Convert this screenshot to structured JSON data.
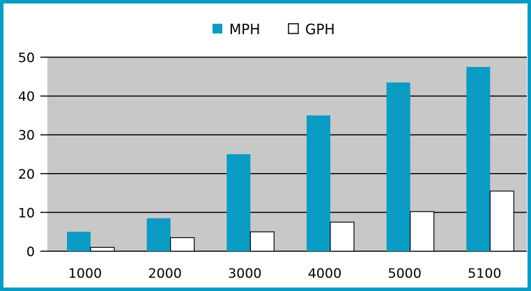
{
  "chart_data": {
    "type": "bar",
    "categories": [
      "1000",
      "2000",
      "3000",
      "4000",
      "5000",
      "5100"
    ],
    "series": [
      {
        "name": "MPH",
        "values": [
          5,
          8.5,
          25,
          35,
          43.5,
          47.5
        ],
        "color": "#0a9cc4"
      },
      {
        "name": "GPH",
        "values": [
          1,
          3.5,
          5,
          7.5,
          10.2,
          15.5
        ],
        "color": "#ffffff"
      }
    ],
    "title": "",
    "xlabel": "",
    "ylabel": "",
    "ylim": [
      0,
      50
    ],
    "yticks": [
      "0",
      "10",
      "20",
      "30",
      "40",
      "50"
    ],
    "grid": true,
    "legend_position": "top-center",
    "plot_background": "#c8c8c8",
    "frame_color": "#0a9cc4"
  }
}
